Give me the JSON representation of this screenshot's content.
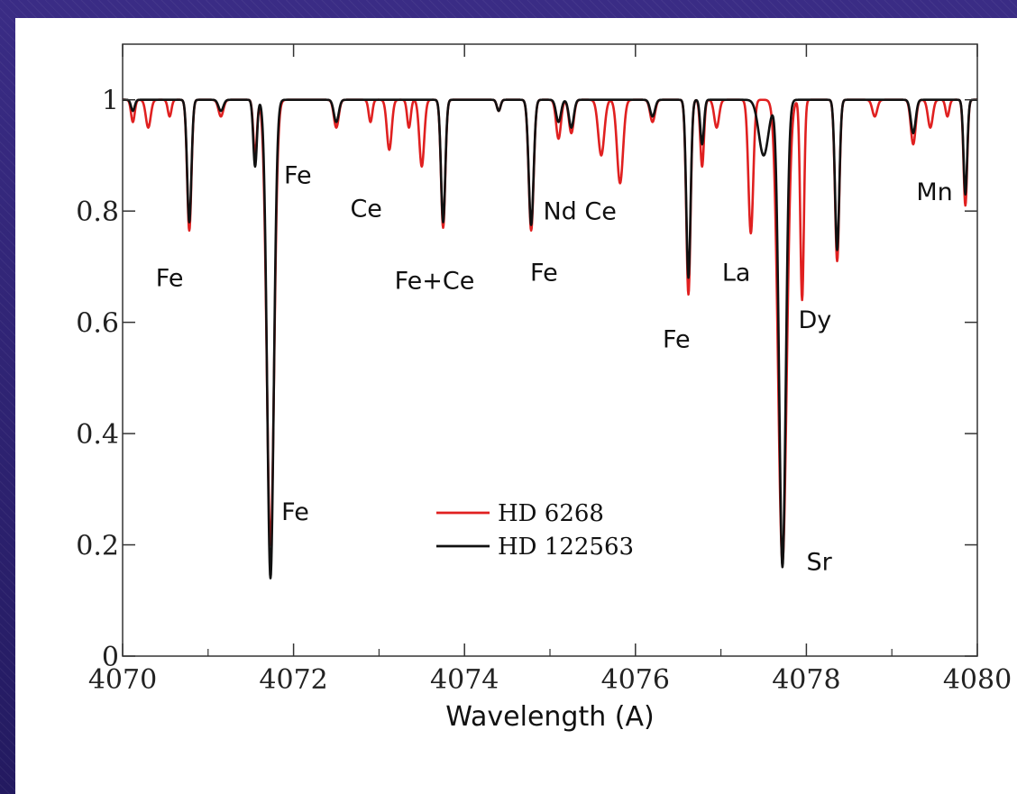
{
  "chart_data": {
    "type": "line",
    "xlabel": "Wavelength (A)",
    "ylabel": "",
    "title": "",
    "xlim": [
      4070,
      4080
    ],
    "ylim": [
      0,
      1.1
    ],
    "x_ticks": [
      4070,
      4072,
      4074,
      4076,
      4078,
      4080
    ],
    "x_tick_labels": [
      "4070",
      "4072",
      "4074",
      "4076",
      "4078",
      "4080"
    ],
    "y_ticks": [
      0,
      0.2,
      0.4,
      0.6,
      0.8,
      1
    ],
    "y_tick_labels": [
      "0",
      "0.2",
      "0.4",
      "0.6",
      "0.8",
      "1"
    ],
    "grid": false,
    "legend_position": "center-bottom",
    "series": [
      {
        "name": "HD 6268",
        "color": "#e02020",
        "continuum": 1.0,
        "lines": [
          [
            4070.12,
            0.04,
            0.03
          ],
          [
            4070.3,
            0.05,
            0.04
          ],
          [
            4070.55,
            0.03,
            0.03
          ],
          [
            4070.78,
            0.235,
            0.035
          ],
          [
            4071.15,
            0.03,
            0.04
          ],
          [
            4071.55,
            0.1,
            0.03
          ],
          [
            4071.73,
            0.8,
            0.06
          ],
          [
            4072.5,
            0.05,
            0.04
          ],
          [
            4072.9,
            0.04,
            0.03
          ],
          [
            4073.12,
            0.09,
            0.04
          ],
          [
            4073.35,
            0.05,
            0.03
          ],
          [
            4073.5,
            0.12,
            0.04
          ],
          [
            4073.75,
            0.23,
            0.035
          ],
          [
            4074.4,
            0.02,
            0.03
          ],
          [
            4074.78,
            0.235,
            0.04
          ],
          [
            4075.1,
            0.07,
            0.04
          ],
          [
            4075.25,
            0.06,
            0.04
          ],
          [
            4075.6,
            0.1,
            0.05
          ],
          [
            4075.82,
            0.15,
            0.05
          ],
          [
            4076.2,
            0.04,
            0.04
          ],
          [
            4076.62,
            0.35,
            0.035
          ],
          [
            4076.78,
            0.12,
            0.03
          ],
          [
            4076.95,
            0.05,
            0.04
          ],
          [
            4077.35,
            0.24,
            0.04
          ],
          [
            4077.72,
            0.83,
            0.07
          ],
          [
            4077.95,
            0.36,
            0.03
          ],
          [
            4078.36,
            0.29,
            0.035
          ],
          [
            4078.8,
            0.03,
            0.04
          ],
          [
            4079.25,
            0.08,
            0.04
          ],
          [
            4079.45,
            0.05,
            0.04
          ],
          [
            4079.65,
            0.03,
            0.03
          ],
          [
            4079.86,
            0.19,
            0.03
          ]
        ]
      },
      {
        "name": "HD 122563",
        "color": "#111111",
        "continuum": 1.0,
        "lines": [
          [
            4070.12,
            0.02,
            0.03
          ],
          [
            4070.78,
            0.22,
            0.035
          ],
          [
            4071.15,
            0.02,
            0.04
          ],
          [
            4071.55,
            0.12,
            0.03
          ],
          [
            4071.73,
            0.86,
            0.055
          ],
          [
            4072.5,
            0.04,
            0.04
          ],
          [
            4073.75,
            0.22,
            0.035
          ],
          [
            4074.4,
            0.02,
            0.03
          ],
          [
            4074.78,
            0.225,
            0.04
          ],
          [
            4075.1,
            0.04,
            0.04
          ],
          [
            4075.25,
            0.05,
            0.04
          ],
          [
            4076.2,
            0.03,
            0.04
          ],
          [
            4076.62,
            0.32,
            0.035
          ],
          [
            4076.78,
            0.08,
            0.03
          ],
          [
            4077.72,
            0.84,
            0.055
          ],
          [
            4077.5,
            0.1,
            0.08
          ],
          [
            4078.36,
            0.27,
            0.035
          ],
          [
            4079.25,
            0.06,
            0.04
          ],
          [
            4079.86,
            0.17,
            0.03
          ]
        ]
      }
    ],
    "annotations": [
      {
        "text": "Fe",
        "x": 4070.55,
        "y": 0.665
      },
      {
        "text": "Fe",
        "x": 4072.05,
        "y": 0.85
      },
      {
        "text": "Ce",
        "x": 4072.85,
        "y": 0.79
      },
      {
        "text": "Fe+Ce",
        "x": 4073.65,
        "y": 0.66
      },
      {
        "text": "Fe",
        "x": 4074.93,
        "y": 0.675
      },
      {
        "text": "Nd Ce",
        "x": 4075.35,
        "y": 0.785
      },
      {
        "text": "Fe",
        "x": 4076.48,
        "y": 0.555
      },
      {
        "text": "La",
        "x": 4077.18,
        "y": 0.675
      },
      {
        "text": "Dy",
        "x": 4078.1,
        "y": 0.59
      },
      {
        "text": "Mn",
        "x": 4079.5,
        "y": 0.82
      },
      {
        "text": "Fe",
        "x": 4072.02,
        "y": 0.245
      },
      {
        "text": "Sr",
        "x": 4078.15,
        "y": 0.155
      }
    ]
  }
}
